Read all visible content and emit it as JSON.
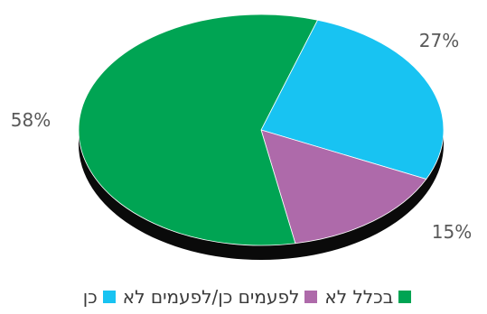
{
  "chart_data": {
    "type": "pie",
    "title": "",
    "slices": [
      {
        "label": "כן",
        "value": 27,
        "display": "27%",
        "color": "#18C3F2"
      },
      {
        "label": "לפעמים כן/לפעמים לא",
        "value": 15,
        "display": "15%",
        "color": "#AE6AAA"
      },
      {
        "label": "בכלל לא",
        "value": 58,
        "display": "58%",
        "color": "#00A453"
      }
    ],
    "legend_position": "bottom",
    "style": "3d"
  }
}
